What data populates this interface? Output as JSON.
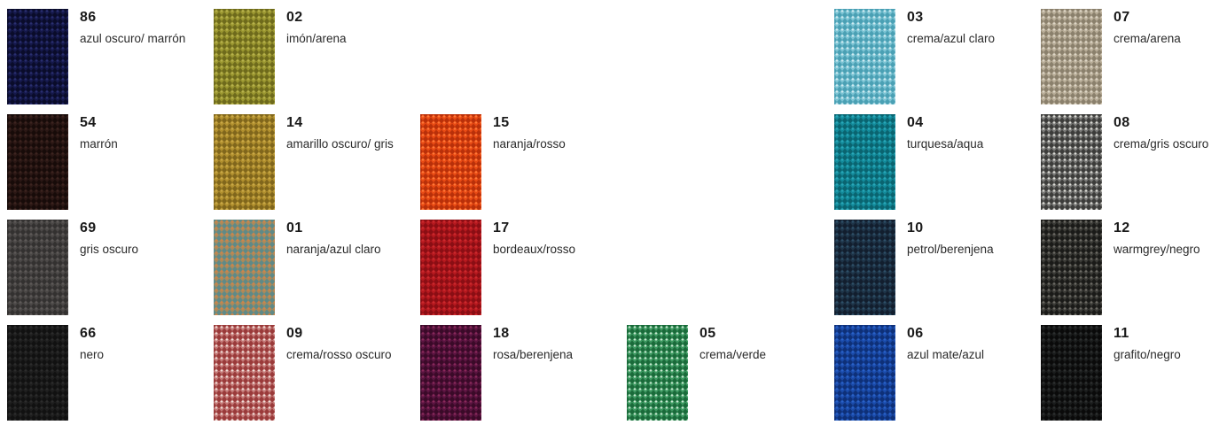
{
  "swatches": [
    {
      "code": "86",
      "name": "azul oscuro/ marrón",
      "base": "#15184a",
      "hi": "#2a2f70",
      "lo": "#0a0c2a",
      "col": 0,
      "row": 0
    },
    {
      "code": "02",
      "name": "imón/arena",
      "base": "#9a9630",
      "hi": "#b8b24e",
      "lo": "#6e6a1c",
      "col": 1,
      "row": 0
    },
    {
      "code": "03",
      "name": "crema/azul claro",
      "base": "#7cc4d4",
      "hi": "#cfeaf0",
      "lo": "#4aa0b4",
      "col": 4,
      "row": 0
    },
    {
      "code": "07",
      "name": "crema/arena",
      "base": "#b8ad98",
      "hi": "#ddd6c6",
      "lo": "#8a806c",
      "col": 5,
      "row": 0
    },
    {
      "code": "54",
      "name": "marrón",
      "base": "#2a1714",
      "hi": "#3d2420",
      "lo": "#170b09",
      "col": 0,
      "row": 1
    },
    {
      "code": "14",
      "name": "amarillo oscuro/ gris",
      "base": "#b08f2e",
      "hi": "#cba948",
      "lo": "#80661c",
      "col": 1,
      "row": 1
    },
    {
      "code": "15",
      "name": "naranja/rosso",
      "base": "#e84a14",
      "hi": "#ff7a3a",
      "lo": "#b8300a",
      "col": 2,
      "row": 1
    },
    {
      "code": "04",
      "name": "turquesa/aqua",
      "base": "#138a9a",
      "hi": "#2aa8b8",
      "lo": "#0a6470",
      "col": 4,
      "row": 1
    },
    {
      "code": "08",
      "name": "crema/gris oscuro",
      "base": "#7a7a78",
      "hi": "#dcdcd6",
      "lo": "#3c3c3a",
      "col": 5,
      "row": 1
    },
    {
      "code": "69",
      "name": "gris oscuro",
      "base": "#4a4746",
      "hi": "#5e5a58",
      "lo": "#333130",
      "col": 0,
      "row": 2
    },
    {
      "code": "01",
      "name": "naranja/azul claro",
      "base": "#a88a5c",
      "hi": "#d0844a",
      "lo": "#5e8a88",
      "col": 1,
      "row": 2
    },
    {
      "code": "17",
      "name": "bordeaux/rosso",
      "base": "#b4181e",
      "hi": "#cc2a2e",
      "lo": "#8a0e14",
      "col": 2,
      "row": 2
    },
    {
      "code": "10",
      "name": "petrol/berenjena",
      "base": "#1e3448",
      "hi": "#2e5068",
      "lo": "#121e2e",
      "col": 4,
      "row": 2
    },
    {
      "code": "12",
      "name": "warmgrey/negro",
      "base": "#3a3a36",
      "hi": "#6e6c66",
      "lo": "#1a1a18",
      "col": 5,
      "row": 2
    },
    {
      "code": "66",
      "name": "nero",
      "base": "#1e1e1e",
      "hi": "#2c2c2c",
      "lo": "#111111",
      "col": 0,
      "row": 3
    },
    {
      "code": "09",
      "name": "crema/rosso oscuro",
      "base": "#c47a78",
      "hi": "#f0dcd6",
      "lo": "#9a3a3a",
      "col": 1,
      "row": 3
    },
    {
      "code": "18",
      "name": "rosa/berenjena",
      "base": "#5a1440",
      "hi": "#8a2a5a",
      "lo": "#3a0a28",
      "col": 2,
      "row": 3
    },
    {
      "code": "05",
      "name": "crema/verde",
      "base": "#3e9a62",
      "hi": "#c8e6d0",
      "lo": "#1a6a3a",
      "col": 3,
      "row": 3
    },
    {
      "code": "06",
      "name": "azul mate/azul",
      "base": "#1a4aa8",
      "hi": "#2a62c8",
      "lo": "#0e3078",
      "col": 4,
      "row": 3
    },
    {
      "code": "11",
      "name": "grafito/negro",
      "base": "#1a1c1c",
      "hi": "#2e3030",
      "lo": "#0a0a0a",
      "col": 5,
      "row": 3
    }
  ]
}
